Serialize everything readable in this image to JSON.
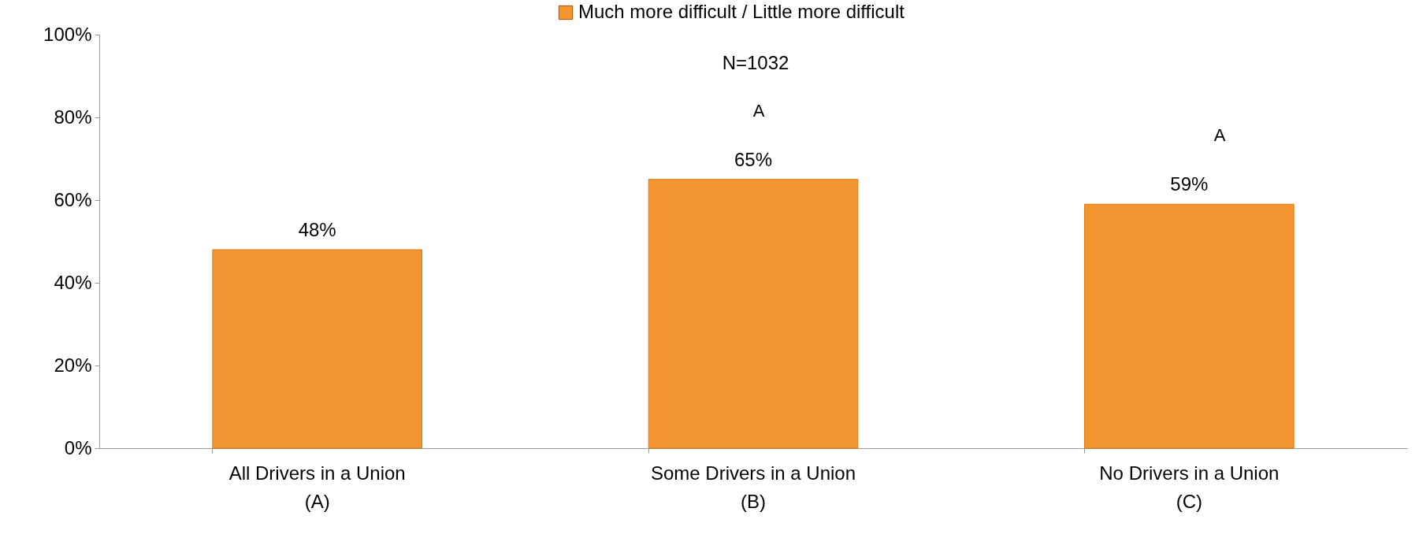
{
  "chart_data": {
    "type": "bar",
    "categories": [
      "All Drivers in a Union\n(A)",
      "Some Drivers in a Union\n(B)",
      "No Drivers in a Union\n(C)"
    ],
    "series": [
      {
        "name": "Much more difficult / Little more difficult",
        "color": "#f39530",
        "values": [
          48,
          65,
          59
        ],
        "value_labels": [
          "48%",
          "65%",
          "59%"
        ]
      }
    ],
    "ylim": [
      0,
      100
    ],
    "yticks": [
      {
        "value": 0,
        "label": "0%"
      },
      {
        "value": 20,
        "label": "20%"
      },
      {
        "value": 40,
        "label": "40%"
      },
      {
        "value": 60,
        "label": "60%"
      },
      {
        "value": 80,
        "label": "80%"
      },
      {
        "value": 100,
        "label": "100%"
      }
    ],
    "annotations": [
      "N=1032",
      "A",
      "A"
    ],
    "legend": "top",
    "grid": false
  }
}
